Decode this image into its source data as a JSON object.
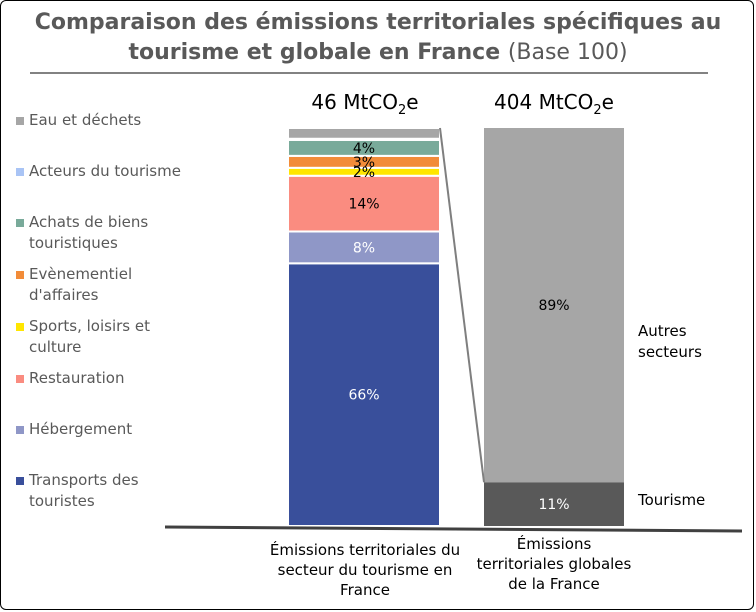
{
  "title_main": "Comparaison des émissions territoriales spécifiques au tourisme et globale en France",
  "title_base": "(Base 100)",
  "totals": [
    {
      "value": "46 MtCO",
      "sub": "2",
      "unit": "e"
    },
    {
      "value": "404 MtCO",
      "sub": "2",
      "unit": "e"
    }
  ],
  "legend": [
    {
      "label": "Eau et déchets",
      "color": "#a6a6a6"
    },
    {
      "label": "Acteurs du tourisme",
      "color": "#a9c4f5"
    },
    {
      "label": "Achats de biens touristiques",
      "color": "#79aa9a"
    },
    {
      "label": "Evènementiel d'affaires",
      "color": "#f28c39"
    },
    {
      "label": "Sports, loisirs et culture",
      "color": "#ffe600"
    },
    {
      "label": "Restauration",
      "color": "#fa8c80"
    },
    {
      "label": "Hébergement",
      "color": "#8f97c7"
    },
    {
      "label": "Transports des touristes",
      "color": "#394f9b"
    }
  ],
  "side_labels": {
    "autres": "Autres secteurs",
    "tourisme": "Tourisme"
  },
  "chart_data": {
    "type": "bar",
    "stacked": true,
    "categories": [
      "Émissions territoriales du secteur du tourisme en France",
      "Émissions territoriales globales de la France"
    ],
    "totals_mtco2e": [
      46,
      404
    ],
    "series_tourism": [
      {
        "name": "Transports des touristes",
        "value": 66,
        "label": "66%"
      },
      {
        "name": "Hébergement",
        "value": 8,
        "label": "8%"
      },
      {
        "name": "Restauration",
        "value": 14,
        "label": "14%"
      },
      {
        "name": "Sports, loisirs et culture",
        "value": 2,
        "label": "2%"
      },
      {
        "name": "Evènementiel d'affaires",
        "value": 3,
        "label": "3%"
      },
      {
        "name": "Achats de biens touristiques",
        "value": 4,
        "label": "4%"
      },
      {
        "name": "Acteurs du tourisme",
        "value": 0.3,
        "label": ""
      },
      {
        "name": "Eau et déchets",
        "value": 2.7,
        "label": ""
      }
    ],
    "series_global": [
      {
        "name": "Tourisme",
        "value": 11,
        "label": "11%",
        "color": "#595959"
      },
      {
        "name": "Autres secteurs",
        "value": 89,
        "label": "89%",
        "color": "#a6a6a6"
      }
    ],
    "ylim": [
      0,
      100
    ]
  }
}
